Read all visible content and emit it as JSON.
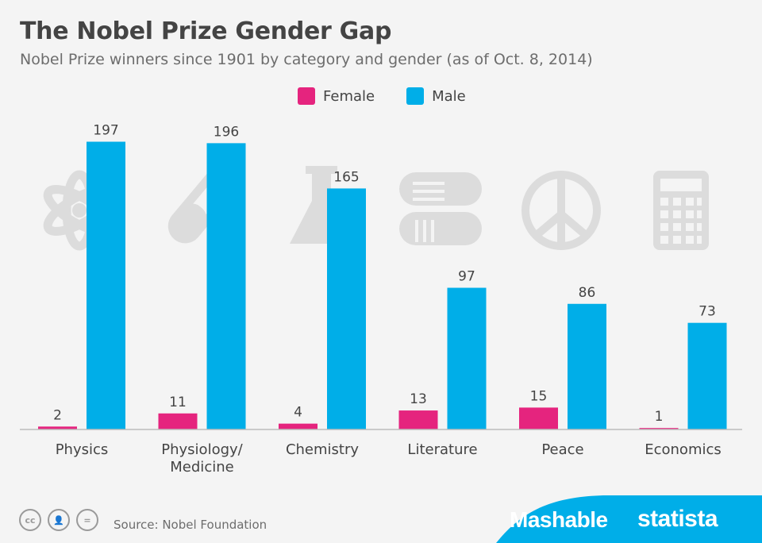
{
  "header": {
    "title": "The Nobel Prize Gender Gap",
    "subtitle": "Nobel Prize winners since 1901 by category and gender (as of Oct. 8, 2014)"
  },
  "legend": [
    {
      "label": "Female",
      "color": "#e5247e"
    },
    {
      "label": "Male",
      "color": "#00aee8"
    }
  ],
  "chart_data": {
    "type": "bar",
    "title": "The Nobel Prize Gender Gap",
    "subtitle": "Nobel Prize winners since 1901 by category and gender (as of Oct. 8, 2014)",
    "categories": [
      "Physics",
      "Physiology/ Medicine",
      "Chemistry",
      "Literature",
      "Peace",
      "Economics"
    ],
    "category_lines": [
      [
        "Physics"
      ],
      [
        "Physiology/",
        "Medicine"
      ],
      [
        "Chemistry"
      ],
      [
        "Literature"
      ],
      [
        "Peace"
      ],
      [
        "Economics"
      ]
    ],
    "category_icons": [
      "atom-icon",
      "test-tube-icon",
      "flask-icon",
      "books-icon",
      "peace-sign-icon",
      "calculator-icon"
    ],
    "series": [
      {
        "name": "Female",
        "color": "#e5247e",
        "values": [
          2,
          11,
          4,
          13,
          15,
          1
        ]
      },
      {
        "name": "Male",
        "color": "#00aee8",
        "values": [
          197,
          196,
          165,
          97,
          86,
          73
        ]
      }
    ],
    "ylim": [
      0,
      200
    ],
    "xlabel": "",
    "ylabel": "",
    "grid": false,
    "legend_position": "top-center"
  },
  "footer": {
    "source": "Source: Nobel Foundation",
    "cc_icons": [
      "cc",
      "by",
      "nd"
    ],
    "brand_1": "Mashable",
    "brand_2": "statista",
    "brand_color": "#00aee8"
  }
}
